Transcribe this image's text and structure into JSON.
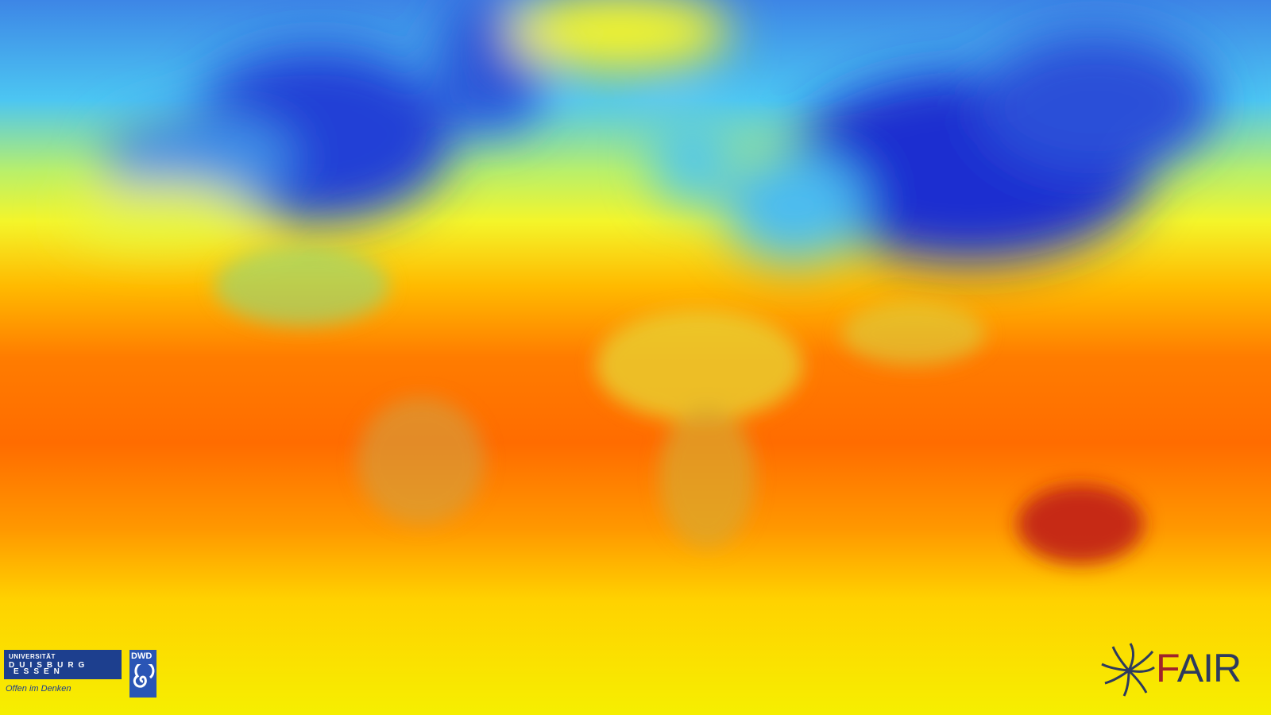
{
  "map": {
    "type": "global temperature map",
    "projection": "mercator",
    "colors": {
      "cold": "#1a2fd0",
      "cool": "#3fb6f0",
      "mild": "#f2f52a",
      "warm": "#ff9a00",
      "hot": "#ff5a00",
      "hottest": "#c0201a"
    }
  },
  "logos": {
    "ude": {
      "line1": "UNIVERSITÄT",
      "line2": "DUISBURG",
      "line3": "ESSEN",
      "motto": "Offen im Denken",
      "color": "#1d3f8e"
    },
    "dwd": {
      "text": "DWD",
      "color": "#2a55b5"
    },
    "fair": {
      "first": "F",
      "rest": "AIR",
      "color": "#2d3a5e",
      "accent": "#a0242a"
    }
  }
}
